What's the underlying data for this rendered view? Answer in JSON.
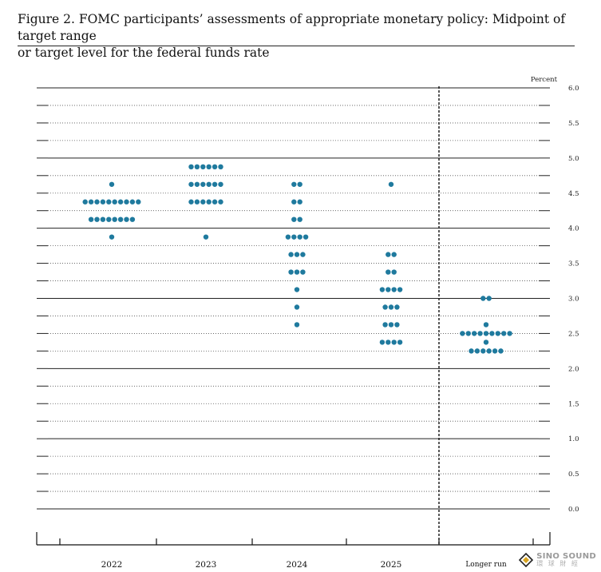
{
  "figure": {
    "title_line1": "Figure 2.  FOMC participants’ assessments of appropriate monetary policy:  Midpoint of target range",
    "title_line2": "or target level for the federal funds rate"
  },
  "chart_data": {
    "type": "scatter",
    "subtype": "dot-plot",
    "unit_label": "Percent",
    "ylim": [
      0.0,
      6.0
    ],
    "yticks": [
      "0.0",
      "0.5",
      "1.0",
      "1.5",
      "2.0",
      "2.5",
      "3.0",
      "3.5",
      "4.0",
      "4.5",
      "5.0",
      "5.5",
      "6.0"
    ],
    "categories": [
      "2022",
      "2023",
      "2024",
      "2025",
      "Longer run"
    ],
    "grid": true,
    "dot_color": "#1f7a9e",
    "dots": [
      {
        "category": "2022",
        "points": [
          {
            "y": 4.625,
            "count": 1
          },
          {
            "y": 4.375,
            "count": 10
          },
          {
            "y": 4.125,
            "count": 8
          },
          {
            "y": 3.875,
            "count": 1
          }
        ]
      },
      {
        "category": "2023",
        "points": [
          {
            "y": 4.875,
            "count": 6
          },
          {
            "y": 4.625,
            "count": 6
          },
          {
            "y": 4.375,
            "count": 6
          },
          {
            "y": 3.875,
            "count": 1
          }
        ]
      },
      {
        "category": "2024",
        "points": [
          {
            "y": 4.625,
            "count": 2
          },
          {
            "y": 4.375,
            "count": 2
          },
          {
            "y": 4.125,
            "count": 2
          },
          {
            "y": 3.875,
            "count": 4
          },
          {
            "y": 3.625,
            "count": 3
          },
          {
            "y": 3.375,
            "count": 3
          },
          {
            "y": 3.125,
            "count": 1
          },
          {
            "y": 2.875,
            "count": 1
          },
          {
            "y": 2.625,
            "count": 1
          }
        ]
      },
      {
        "category": "2025",
        "points": [
          {
            "y": 4.625,
            "count": 1
          },
          {
            "y": 3.625,
            "count": 2
          },
          {
            "y": 3.375,
            "count": 2
          },
          {
            "y": 3.125,
            "count": 4
          },
          {
            "y": 2.875,
            "count": 3
          },
          {
            "y": 2.625,
            "count": 3
          },
          {
            "y": 2.375,
            "count": 4
          }
        ]
      },
      {
        "category": "Longer run",
        "points": [
          {
            "y": 3.0,
            "count": 2
          },
          {
            "y": 2.625,
            "count": 1
          },
          {
            "y": 2.5,
            "count": 9
          },
          {
            "y": 2.375,
            "count": 1
          },
          {
            "y": 2.25,
            "count": 6
          }
        ]
      }
    ]
  },
  "watermark": {
    "text": "SINO SOUND",
    "sub": "環 球 財 經"
  }
}
